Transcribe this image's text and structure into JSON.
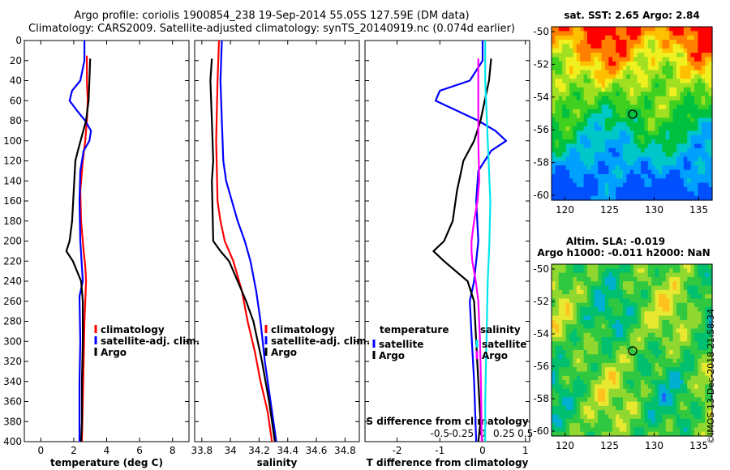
{
  "header": {
    "title_line1": "Argo profile: coriolis 1900854_238 19-Sep-2014 55.05S 127.59E (DM data)",
    "title_line2": "Climatology: CARS2009. Satellite-adjusted climatology: synTS_20140919.nc (0.074d earlier)"
  },
  "credit": "©IMOS 13-Dec-2018 21:58:34",
  "colors": {
    "climatology": "#ff0000",
    "satellite": "#0000ff",
    "argo": "#000000",
    "sal_satellite": "#00e5ee",
    "sal_argo": "#ff00ff"
  },
  "chart_data": [
    {
      "type": "line",
      "id": "temperature",
      "xlabel": "temperature (deg C)",
      "ylabel": "",
      "xlim": [
        -1,
        9
      ],
      "ylim": [
        400,
        0
      ],
      "xticks": [
        0,
        2,
        4,
        6,
        8
      ],
      "yticks": [
        0,
        20,
        40,
        60,
        80,
        100,
        120,
        140,
        160,
        180,
        200,
        220,
        240,
        260,
        280,
        300,
        320,
        340,
        360,
        380,
        400
      ],
      "legend": [
        "climatology",
        "satellite-adj. clim.",
        "Argo"
      ],
      "series": [
        {
          "name": "climatology",
          "color": "#ff0000",
          "depth": [
            15,
            40,
            60,
            80,
            100,
            120,
            150,
            180,
            210,
            225,
            240,
            280,
            320,
            360,
            400
          ],
          "values": [
            2.8,
            2.8,
            2.85,
            2.8,
            2.7,
            2.55,
            2.4,
            2.45,
            2.6,
            2.7,
            2.75,
            2.65,
            2.6,
            2.55,
            2.5
          ]
        },
        {
          "name": "satellite-adj. clim.",
          "color": "#0000ff",
          "depth": [
            0,
            20,
            40,
            50,
            60,
            70,
            80,
            90,
            100,
            110,
            130,
            160,
            200,
            240,
            255,
            300,
            340,
            400
          ],
          "values": [
            2.65,
            2.65,
            2.4,
            1.9,
            1.75,
            2.2,
            2.7,
            3.05,
            2.95,
            2.6,
            2.4,
            2.35,
            2.4,
            2.55,
            2.35,
            2.4,
            2.35,
            2.35
          ]
        },
        {
          "name": "Argo",
          "color": "#000000",
          "depth": [
            18,
            40,
            60,
            80,
            95,
            110,
            120,
            150,
            180,
            200,
            210,
            220,
            240,
            260,
            300,
            340,
            380,
            400
          ],
          "values": [
            3.0,
            2.95,
            2.9,
            2.75,
            2.5,
            2.25,
            2.1,
            2.0,
            1.9,
            1.75,
            1.55,
            1.95,
            2.45,
            2.55,
            2.55,
            2.5,
            2.5,
            2.45
          ]
        }
      ]
    },
    {
      "type": "line",
      "id": "salinity",
      "xlabel": "salinity",
      "xlim": [
        33.75,
        34.9
      ],
      "ylim": [
        400,
        0
      ],
      "xticks": [
        33.8,
        34,
        34.2,
        34.4,
        34.6,
        34.8
      ],
      "xtick_labels": [
        "33.8",
        "34",
        "34.2",
        "34.4",
        "34.6",
        "34.8"
      ],
      "legend": [
        "climatology",
        "satellite-adj. clim.",
        "Argo"
      ],
      "series": [
        {
          "name": "climatology",
          "color": "#ff0000",
          "depth": [
            0,
            40,
            100,
            160,
            180,
            200,
            220,
            250,
            280,
            310,
            340,
            370,
            400
          ],
          "values": [
            33.92,
            33.91,
            33.9,
            33.91,
            33.93,
            33.96,
            34.02,
            34.08,
            34.12,
            34.17,
            34.21,
            34.26,
            34.29
          ]
        },
        {
          "name": "satellite-adj. clim.",
          "color": "#0000ff",
          "depth": [
            0,
            40,
            80,
            120,
            140,
            160,
            180,
            200,
            220,
            250,
            280,
            320,
            360,
            400
          ],
          "values": [
            33.94,
            33.93,
            33.94,
            33.95,
            33.97,
            34.01,
            34.05,
            34.1,
            34.14,
            34.18,
            34.21,
            34.24,
            34.28,
            34.32
          ]
        },
        {
          "name": "Argo",
          "color": "#000000",
          "depth": [
            18,
            40,
            80,
            120,
            140,
            200,
            210,
            220,
            240,
            260,
            280,
            320,
            360,
            400
          ],
          "values": [
            33.87,
            33.86,
            33.87,
            33.88,
            33.87,
            33.88,
            33.93,
            33.99,
            34.05,
            34.11,
            34.16,
            34.22,
            34.27,
            34.31
          ]
        }
      ]
    },
    {
      "type": "line",
      "id": "difference",
      "xlabel": "T difference from climatology",
      "xlabel_top": "S difference from climatology",
      "xlim": [
        -2.75,
        1.1
      ],
      "ylim": [
        400,
        0
      ],
      "xticks": [
        -2,
        -1,
        0,
        1
      ],
      "s_xticks": [
        -0.5,
        -0.25,
        0,
        0.25,
        0.5
      ],
      "s_xtick_labels": [
        "-0.5",
        "-0.25",
        "0",
        "0.25",
        "0.5"
      ],
      "s_scale": 2,
      "legend_temperature_title": "temperature",
      "legend_salinity_title": "salinity",
      "legend_temperature": [
        "satellite",
        "Argo"
      ],
      "legend_salinity": [
        "satellite",
        "Argo"
      ],
      "series": [
        {
          "name": "T satellite",
          "color": "#0000ff",
          "depth": [
            0,
            20,
            40,
            50,
            60,
            70,
            80,
            90,
            100,
            110,
            130,
            160,
            200,
            240,
            260,
            300,
            340,
            400
          ],
          "values": [
            0,
            0,
            -0.3,
            -1.0,
            -1.1,
            -0.6,
            -0.1,
            0.3,
            0.55,
            0.2,
            -0.1,
            -0.15,
            -0.1,
            -0.2,
            -0.3,
            -0.25,
            -0.2,
            -0.15
          ]
        },
        {
          "name": "T Argo",
          "color": "#000000",
          "depth": [
            18,
            40,
            60,
            80,
            100,
            120,
            150,
            180,
            200,
            210,
            220,
            240,
            260,
            300,
            340,
            380,
            400
          ],
          "values": [
            0.2,
            0.15,
            0.05,
            -0.05,
            -0.2,
            -0.45,
            -0.6,
            -0.7,
            -0.9,
            -1.15,
            -0.9,
            -0.35,
            -0.2,
            -0.15,
            -0.1,
            -0.05,
            -0.1
          ]
        },
        {
          "name": "S satellite",
          "color": "#00e5ee",
          "depth": [
            0,
            40,
            80,
            100,
            120,
            160,
            200,
            220,
            240,
            280,
            320,
            360,
            400
          ],
          "values": [
            0.03,
            0.03,
            0.05,
            0.06,
            0.07,
            0.09,
            0.08,
            0.07,
            0.06,
            0.05,
            0.04,
            0.03,
            0.03
          ]
        },
        {
          "name": "S Argo",
          "color": "#ff00ff",
          "depth": [
            18,
            60,
            100,
            140,
            160,
            180,
            200,
            210,
            220,
            240,
            260,
            300,
            340,
            400
          ],
          "values": [
            -0.05,
            -0.05,
            -0.05,
            -0.04,
            -0.06,
            -0.1,
            -0.13,
            -0.13,
            -0.12,
            -0.08,
            -0.05,
            -0.03,
            -0.02,
            -0.01
          ]
        }
      ]
    },
    {
      "type": "heatmap",
      "id": "sst_map",
      "title": "sat. SST: 2.65 Argo: 2.84",
      "xticks": [
        120,
        125,
        130,
        135
      ],
      "yticks": [
        -50,
        -52,
        -54,
        -56,
        -58,
        -60
      ],
      "ytick_labels": [
        "-50",
        "-52",
        "-54",
        "-56",
        "-58",
        "-60"
      ],
      "xlim": [
        118.5,
        136.5
      ],
      "ylim": [
        -60.3,
        -49.7
      ],
      "marker": {
        "lon": 127.59,
        "lat": -55.05
      }
    },
    {
      "type": "heatmap",
      "id": "sla_map",
      "title_line1": "Altim. SLA: -0.019",
      "title_line2": "Argo h1000: -0.011 h2000: NaN",
      "xticks": [
        120,
        125,
        130,
        135
      ],
      "yticks": [
        -50,
        -52,
        -54,
        -56,
        -58,
        -60
      ],
      "ytick_labels": [
        "-50",
        "-52",
        "-54",
        "-56",
        "-58",
        "-60"
      ],
      "xlim": [
        118.5,
        136.5
      ],
      "ylim": [
        -60.3,
        -49.7
      ],
      "marker": {
        "lon": 127.59,
        "lat": -55.05
      }
    }
  ]
}
